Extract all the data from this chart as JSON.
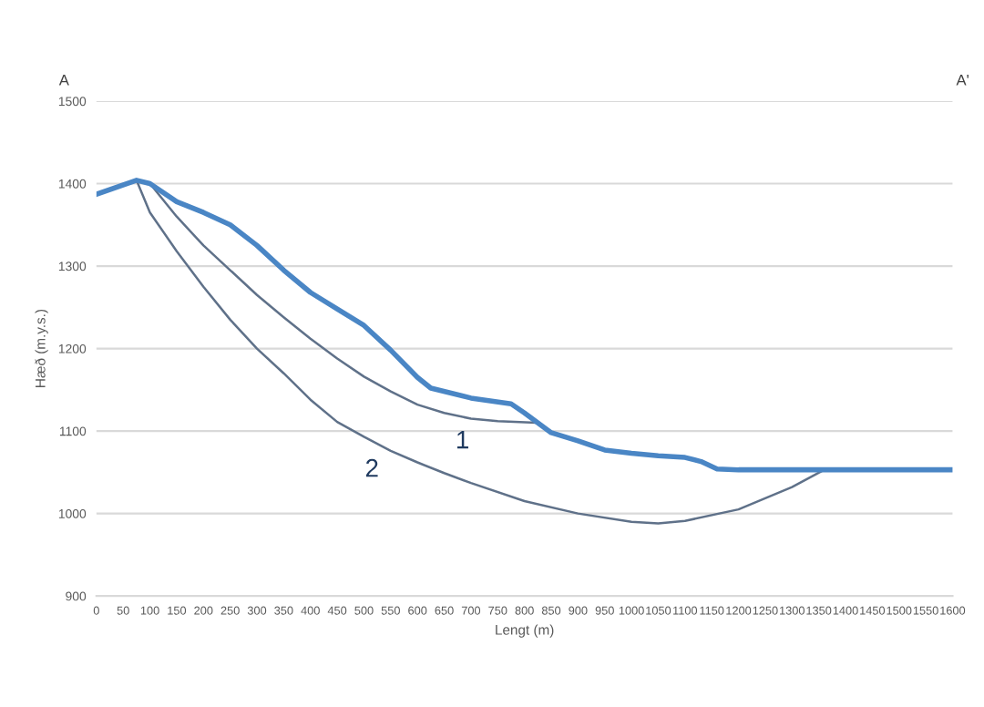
{
  "chart_data": {
    "type": "line",
    "xlabel": "Lengt (m)",
    "ylabel": "Hæð (m.y.s.)",
    "xlim": [
      0,
      1600
    ],
    "xticks": [
      0,
      50,
      100,
      150,
      200,
      250,
      300,
      350,
      400,
      450,
      500,
      550,
      600,
      650,
      700,
      750,
      800,
      850,
      900,
      950,
      1000,
      1050,
      1100,
      1150,
      1200,
      1250,
      1300,
      1350,
      1400,
      1450,
      1500,
      1550,
      1600
    ],
    "ylim": [
      900,
      1500
    ],
    "yticks": [
      900,
      1000,
      1100,
      1200,
      1300,
      1400,
      1500
    ],
    "grid": "y",
    "legend": false,
    "marker": "none",
    "line_style": "solid",
    "series": [
      {
        "color": "#4a86c5",
        "x": [
          0,
          75,
          100,
          150,
          200,
          250,
          300,
          350,
          400,
          450,
          500,
          550,
          600,
          625,
          700,
          775,
          800,
          850,
          900,
          950,
          1000,
          1050,
          1100,
          1130,
          1160,
          1200,
          1600
        ],
        "values": [
          1387,
          1404,
          1400,
          1378,
          1365,
          1350,
          1325,
          1295,
          1268,
          1248,
          1228,
          1198,
          1165,
          1152,
          1140,
          1133,
          1122,
          1098,
          1088,
          1077,
          1073,
          1070,
          1068,
          1063,
          1054,
          1053,
          1053
        ]
      },
      {
        "color": "#5f7189",
        "x": [
          100,
          150,
          200,
          250,
          300,
          350,
          400,
          450,
          500,
          550,
          600,
          650,
          700,
          750,
          820
        ],
        "values": [
          1400,
          1360,
          1325,
          1295,
          1265,
          1238,
          1212,
          1188,
          1166,
          1148,
          1132,
          1122,
          1115,
          1112,
          1110
        ]
      },
      {
        "color": "#5f7189",
        "x": [
          75,
          100,
          150,
          200,
          250,
          300,
          350,
          400,
          450,
          500,
          550,
          600,
          650,
          700,
          800,
          900,
          1000,
          1050,
          1100,
          1200,
          1300,
          1360
        ],
        "values": [
          1404,
          1365,
          1318,
          1275,
          1235,
          1200,
          1170,
          1138,
          1111,
          1093,
          1076,
          1062,
          1049,
          1037,
          1015,
          1000,
          990,
          988,
          991,
          1005,
          1032,
          1053
        ]
      }
    ],
    "annotations": [
      "1",
      "2",
      "A",
      "A'"
    ]
  }
}
